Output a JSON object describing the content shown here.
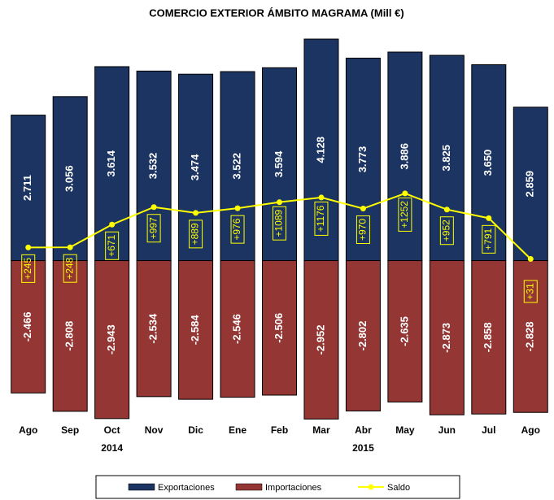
{
  "chart_data": {
    "type": "bar",
    "title": "COMERCIO EXTERIOR ÁMBITO MAGRAMA (Mill €)",
    "categories": [
      "Ago",
      "Sep",
      "Oct",
      "Nov",
      "Dic",
      "Ene",
      "Feb",
      "Mar",
      "Abr",
      "May",
      "Jun",
      "Jul",
      "Ago"
    ],
    "year_labels": [
      {
        "label": "2014",
        "category_index": 2
      },
      {
        "label": "2015",
        "category_index": 8
      }
    ],
    "ylim": [
      -2900,
      4250
    ],
    "series": [
      {
        "name": "Exportaciones",
        "color": "#1c3461",
        "values": [
          2711,
          3056,
          3614,
          3532,
          3474,
          3522,
          3594,
          4128,
          3773,
          3886,
          3825,
          3650,
          2859
        ],
        "value_labels": [
          "2.711",
          "3.056",
          "3.614",
          "3.532",
          "3.474",
          "3.522",
          "3.594",
          "4.128",
          "3.773",
          "3.886",
          "3.825",
          "3.650",
          "2.859"
        ]
      },
      {
        "name": "Importaciones",
        "color": "#943634",
        "values": [
          -2466,
          -2808,
          -2943,
          -2534,
          -2584,
          -2546,
          -2506,
          -2952,
          -2802,
          -2635,
          -2873,
          -2858,
          -2828
        ],
        "value_labels": [
          "-2.466",
          "-2.808",
          "-2.943",
          "-2.534",
          "-2.584",
          "-2.546",
          "-2.506",
          "-2.952",
          "-2.802",
          "-2.635",
          "-2.873",
          "-2.858",
          "-2.828"
        ]
      },
      {
        "name": "Saldo",
        "color": "#ffff00",
        "type": "line",
        "values": [
          245,
          248,
          671,
          997,
          889,
          976,
          1089,
          1176,
          970,
          1252,
          952,
          791,
          31
        ],
        "value_labels": [
          "+245",
          "+248",
          "+671",
          "+997",
          "+889",
          "+976",
          "+1089",
          "+1176",
          "+970",
          "+1252",
          "+952",
          "+791",
          "+31"
        ]
      }
    ]
  }
}
